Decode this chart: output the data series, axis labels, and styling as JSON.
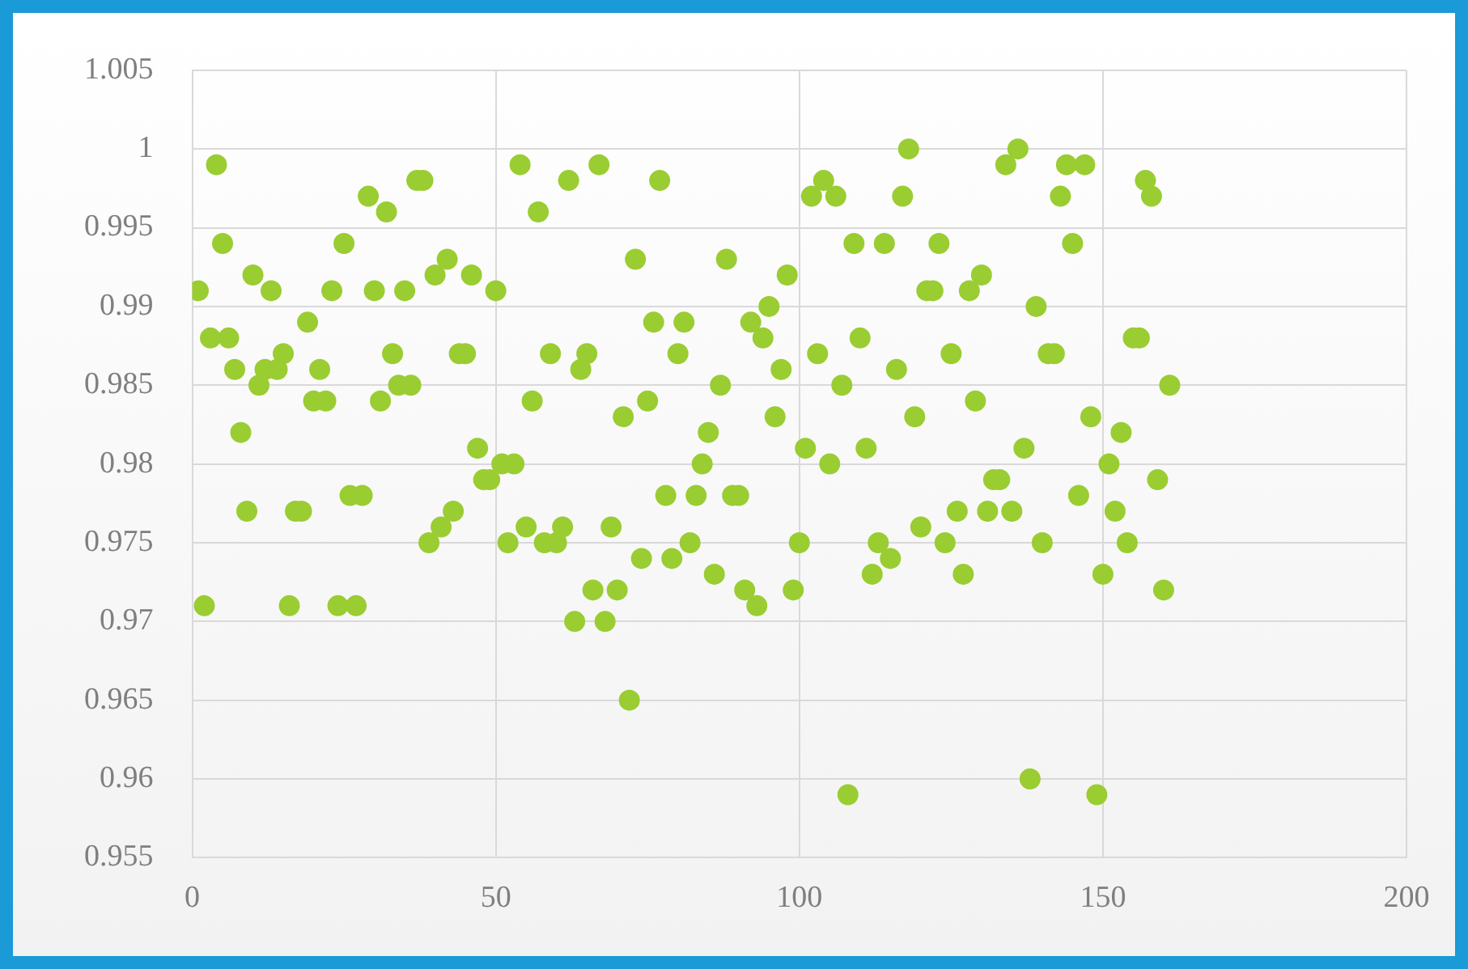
{
  "chart_data": {
    "type": "scatter",
    "marker": "circle",
    "grid": true,
    "xlim": [
      0,
      200
    ],
    "xticks": [
      0,
      50,
      100,
      150,
      200
    ],
    "ylim": [
      0.955,
      1.005
    ],
    "yticks": [
      0.955,
      0.96,
      0.965,
      0.97,
      0.975,
      0.98,
      0.985,
      0.99,
      0.995,
      1,
      1.005
    ],
    "series": [
      {
        "color": "#9acd32",
        "x": [
          1,
          2,
          3,
          4,
          5,
          6,
          7,
          8,
          9,
          10,
          11,
          12,
          13,
          14,
          15,
          16,
          17,
          18,
          19,
          20,
          21,
          22,
          23,
          24,
          25,
          26,
          27,
          28,
          29,
          30,
          31,
          32,
          33,
          34,
          35,
          36,
          37,
          38,
          39,
          40,
          41,
          42,
          43,
          44,
          45,
          46,
          47,
          48,
          49,
          50,
          51,
          52,
          53,
          54,
          55,
          56,
          57,
          58,
          59,
          60,
          61,
          62,
          63,
          64,
          65,
          66,
          67,
          68,
          69,
          70,
          71,
          72,
          73,
          74,
          75,
          76,
          77,
          78,
          79,
          80,
          81,
          82,
          83,
          84,
          85,
          86,
          87,
          88,
          89,
          90,
          91,
          92,
          93,
          94,
          95,
          96,
          97,
          98,
          99,
          100,
          101,
          102,
          103,
          104,
          105,
          106,
          107,
          108,
          109,
          110,
          111,
          112,
          113,
          114,
          115,
          116,
          117,
          118,
          119,
          120,
          121,
          122,
          123,
          124,
          125,
          126,
          127,
          128,
          129,
          130,
          131,
          132,
          133,
          134,
          135,
          136,
          137,
          138,
          139,
          140,
          141,
          142,
          143,
          144,
          145,
          146,
          147,
          148,
          149,
          150,
          151,
          152,
          153,
          154,
          155,
          156,
          157,
          158,
          159,
          160,
          161
        ],
        "values": [
          0.991,
          0.971,
          0.988,
          0.999,
          0.994,
          0.988,
          0.986,
          0.982,
          0.977,
          0.992,
          0.985,
          0.986,
          0.991,
          0.986,
          0.987,
          0.971,
          0.977,
          0.977,
          0.989,
          0.984,
          0.986,
          0.984,
          0.991,
          0.971,
          0.994,
          0.978,
          0.971,
          0.978,
          0.997,
          0.991,
          0.984,
          0.996,
          0.987,
          0.985,
          0.991,
          0.985,
          0.998,
          0.998,
          0.975,
          0.992,
          0.976,
          0.993,
          0.977,
          0.987,
          0.987,
          0.992,
          0.981,
          0.979,
          0.979,
          0.991,
          0.98,
          0.975,
          0.98,
          0.999,
          0.976,
          0.984,
          0.996,
          0.975,
          0.987,
          0.975,
          0.976,
          0.998,
          0.97,
          0.986,
          0.987,
          0.972,
          0.999,
          0.97,
          0.976,
          0.972,
          0.983,
          0.965,
          0.993,
          0.974,
          0.984,
          0.989,
          0.998,
          0.978,
          0.974,
          0.987,
          0.989,
          0.975,
          0.978,
          0.98,
          0.982,
          0.973,
          0.985,
          0.993,
          0.978,
          0.978,
          0.972,
          0.989,
          0.971,
          0.988,
          0.99,
          0.983,
          0.986,
          0.992,
          0.972,
          0.975,
          0.981,
          0.997,
          0.987,
          0.998,
          0.98,
          0.997,
          0.985,
          0.959,
          0.994,
          0.988,
          0.981,
          0.973,
          0.975,
          0.994,
          0.974,
          0.986,
          0.997,
          1,
          0.983,
          0.976,
          0.991,
          0.991,
          0.994,
          0.975,
          0.987,
          0.977,
          0.973,
          0.991,
          0.984,
          0.992,
          0.977,
          0.979,
          0.979,
          0.999,
          0.977,
          1,
          0.981,
          0.96,
          0.99,
          0.975,
          0.987,
          0.987,
          0.997,
          0.999,
          0.994,
          0.978,
          0.999,
          0.983,
          0.959,
          0.973,
          0.98,
          0.977,
          0.982,
          0.975,
          0.988,
          0.988,
          0.998,
          0.997,
          0.979,
          0.972,
          0.985
        ]
      }
    ]
  }
}
